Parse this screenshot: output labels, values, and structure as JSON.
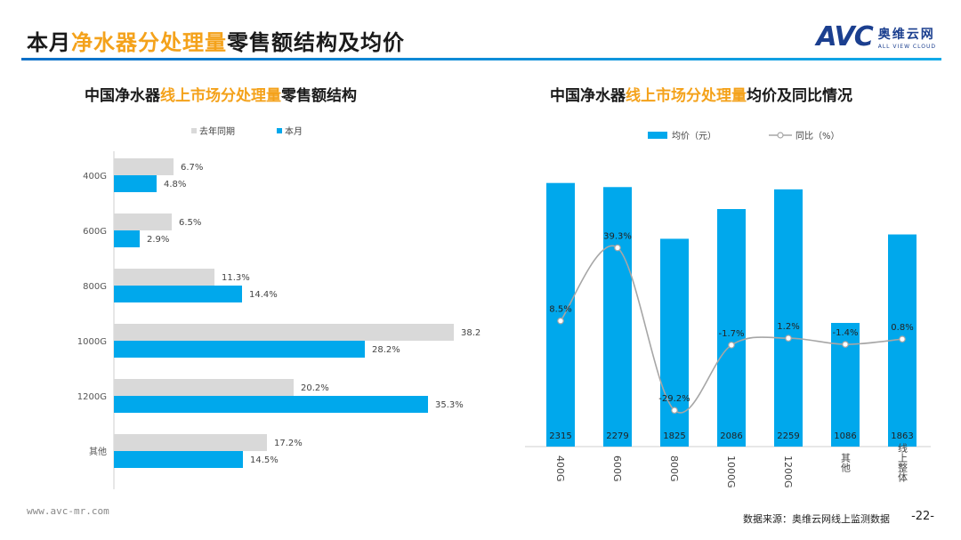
{
  "header": {
    "title_pre": "本月",
    "title_hl": "净水器分处理量",
    "title_post": "零售额结构及均价",
    "logo_avc": "AVC",
    "logo_cn": "奥维云网",
    "logo_en": "ALL VIEW CLOUD"
  },
  "left": {
    "sub_pre": "中国净水器",
    "sub_hl": "线上市场分处理量",
    "sub_post": "零售额结构"
  },
  "right": {
    "sub_pre": "中国净水器",
    "sub_hl": "线上市场分处理量",
    "sub_post": "均价及同比情况"
  },
  "chart_data": [
    {
      "type": "bar",
      "orientation": "horizontal",
      "categories": [
        "400G",
        "600G",
        "800G",
        "1000G",
        "1200G",
        "其他"
      ],
      "series": [
        {
          "name": "去年同期",
          "values": [
            6.7,
            6.5,
            11.3,
            38.2,
            20.2,
            17.2
          ],
          "labels": [
            "6.7%",
            "6.5%",
            "11.3%",
            "38.2%",
            "20.2%",
            "17.2%"
          ],
          "color": "#d9d9d9"
        },
        {
          "name": "本月",
          "values": [
            4.8,
            2.9,
            14.4,
            28.2,
            35.3,
            14.5
          ],
          "labels": [
            "4.8%",
            "2.9%",
            "14.4%",
            "28.2%",
            "35.3%",
            "14.5%"
          ],
          "color": "#00a8ec"
        }
      ],
      "legend_position": "top",
      "xlim": [
        0,
        40
      ]
    },
    {
      "type": "bar",
      "categories": [
        "400G",
        "600G",
        "800G",
        "1000G",
        "1200G",
        "其他",
        "线上整体"
      ],
      "series": [
        {
          "name": "均价（元）",
          "type": "bar",
          "values": [
            2315,
            2279,
            1825,
            2086,
            2259,
            1086,
            1863
          ],
          "color": "#00a8ec"
        },
        {
          "name": "同比（%）",
          "type": "line",
          "values": [
            8.5,
            39.3,
            -29.2,
            -1.7,
            1.2,
            -1.4,
            0.8
          ],
          "labels": [
            "8.5%",
            "39.3%",
            "-29.2%",
            "-1.7%",
            "1.2%",
            "-1.4%",
            "0.8%"
          ],
          "color": "#a6a6a6"
        }
      ],
      "legend_position": "top",
      "ylim_bar": [
        0,
        2500
      ],
      "ylim_line": [
        -40,
        80
      ]
    }
  ],
  "footer": {
    "url": "www.avc-mr.com",
    "source": "数据来源：奥维云网线上监测数据",
    "page": "-22-"
  }
}
